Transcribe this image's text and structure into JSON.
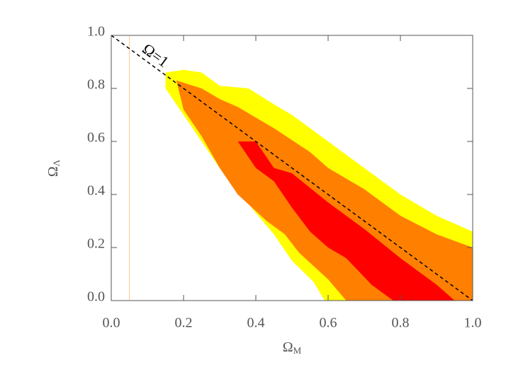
{
  "chart_data": {
    "type": "contour",
    "x_label": "Ω",
    "x_label_sub": "M",
    "y_label": "Ω",
    "y_label_sub": "Λ",
    "xlim": [
      0,
      1
    ],
    "ylim": [
      0,
      1
    ],
    "xticks": [
      {
        "value": 0,
        "label": "0.0"
      },
      {
        "value": 0.2,
        "label": "0.2"
      },
      {
        "value": 0.4,
        "label": "0.4"
      },
      {
        "value": 0.6,
        "label": "0.6"
      },
      {
        "value": 0.8,
        "label": "0.8"
      },
      {
        "value": 1,
        "label": "1.0"
      }
    ],
    "yticks": [
      {
        "value": 0,
        "label": "0.0"
      },
      {
        "value": 0.2,
        "label": "0.2"
      },
      {
        "value": 0.4,
        "label": "0.4"
      },
      {
        "value": 0.6,
        "label": "0.6"
      },
      {
        "value": 0.8,
        "label": "0.8"
      },
      {
        "value": 1,
        "label": "1.0"
      }
    ],
    "series": [
      {
        "color": "#ffff00",
        "x": [
          0.15,
          0.2,
          0.25,
          0.3,
          0.38,
          0.45,
          0.5,
          0.6,
          0.7,
          0.8,
          0.9,
          1.0,
          1.0,
          0.59,
          0.56,
          0.5,
          0.45,
          0.4,
          0.3,
          0.22,
          0.15
        ],
        "y": [
          0.86,
          0.87,
          0.86,
          0.81,
          0.8,
          0.74,
          0.7,
          0.6,
          0.5,
          0.4,
          0.32,
          0.26,
          0,
          0,
          0.07,
          0.15,
          0.25,
          0.33,
          0.5,
          0.66,
          0.8
        ]
      },
      {
        "color": "#ff8000",
        "x": [
          0.18,
          0.25,
          0.3,
          0.35,
          0.45,
          0.55,
          0.6,
          0.7,
          0.8,
          0.9,
          1.0,
          1.0,
          0.65,
          0.6,
          0.52,
          0.48,
          0.43,
          0.35,
          0.3,
          0.25,
          0.2
        ],
        "y": [
          0.83,
          0.8,
          0.76,
          0.73,
          0.65,
          0.56,
          0.5,
          0.42,
          0.32,
          0.25,
          0.2,
          0,
          0,
          0.08,
          0.18,
          0.25,
          0.3,
          0.4,
          0.5,
          0.62,
          0.72
        ]
      },
      {
        "color": "#ff0000",
        "x": [
          0.35,
          0.4,
          0.45,
          0.5,
          0.6,
          0.7,
          0.8,
          0.9,
          0.95,
          0.78,
          0.72,
          0.65,
          0.6,
          0.55,
          0.5,
          0.45,
          0.4
        ],
        "y": [
          0.6,
          0.6,
          0.5,
          0.48,
          0.37,
          0.27,
          0.16,
          0.06,
          0,
          0,
          0.06,
          0.16,
          0.2,
          0.26,
          0.35,
          0.45,
          0.5
        ]
      }
    ],
    "reference_line": {
      "label": "Ω=1",
      "x": [
        0,
        1
      ],
      "y": [
        1,
        0
      ]
    },
    "vline": {
      "x": 0.05,
      "color": "#ffcc99"
    }
  }
}
